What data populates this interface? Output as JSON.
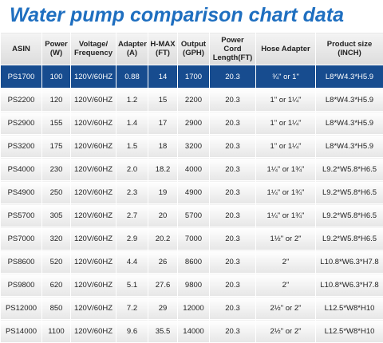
{
  "title": "Water pump comparison chart data",
  "table": {
    "header": [
      "ASIN",
      "Power (W)",
      "Voltage/ Frequency",
      "Adapter (A)",
      "H-MAX (FT)",
      "Output (GPH)",
      "Power Cord Length(FT)",
      "Hose Adapter",
      "Product size (INCH)"
    ],
    "rows": [
      [
        "PS1700",
        "100",
        "120V/60HZ",
        "0.88",
        "14",
        "1700",
        "20.3",
        "¾\" or 1\"",
        "L8*W4.3*H5.9"
      ],
      [
        "PS2200",
        "120",
        "120V/60HZ",
        "1.2",
        "15",
        "2200",
        "20.3",
        "1\" or 1¼\"",
        "L8*W4.3*H5.9"
      ],
      [
        "PS2900",
        "155",
        "120V/60HZ",
        "1.4",
        "17",
        "2900",
        "20.3",
        "1\" or 1¼\"",
        "L8*W4.3*H5.9"
      ],
      [
        "PS3200",
        "175",
        "120V/60HZ",
        "1.5",
        "18",
        "3200",
        "20.3",
        "1\" or 1¼\"",
        "L8*W4.3*H5.9"
      ],
      [
        "PS4000",
        "230",
        "120V/60HZ",
        "2.0",
        "18.2",
        "4000",
        "20.3",
        "1¼\" or 1¾\"",
        "L9.2*W5.8*H6.5"
      ],
      [
        "PS4900",
        "250",
        "120V/60HZ",
        "2.3",
        "19",
        "4900",
        "20.3",
        "1¼\" or 1¾\"",
        "L9.2*W5.8*H6.5"
      ],
      [
        "PS5700",
        "305",
        "120V/60HZ",
        "2.7",
        "20",
        "5700",
        "20.3",
        "1¼\" or 1¾\"",
        "L9.2*W5.8*H6.5"
      ],
      [
        "PS7000",
        "320",
        "120V/60HZ",
        "2.9",
        "20.2",
        "7000",
        "20.3",
        "1½\" or 2\"",
        "L9.2*W5.8*H6.5"
      ],
      [
        "PS8600",
        "520",
        "120V/60HZ",
        "4.4",
        "26",
        "8600",
        "20.3",
        "2\"",
        "L10.8*W6.3*H7.8"
      ],
      [
        "PS9800",
        "620",
        "120V/60HZ",
        "5.1",
        "27.6",
        "9800",
        "20.3",
        "2\"",
        "L10.8*W6.3*H7.8"
      ],
      [
        "PS12000",
        "850",
        "120V/60HZ",
        "7.2",
        "29",
        "12000",
        "20.3",
        "2½\" or 2\"",
        "L12.5*W8*H10"
      ],
      [
        "PS14000",
        "1100",
        "120V/60HZ",
        "9.6",
        "35.5",
        "14000",
        "20.3",
        "2½\" or 2\"",
        "L12.5*W8*H10"
      ]
    ]
  }
}
